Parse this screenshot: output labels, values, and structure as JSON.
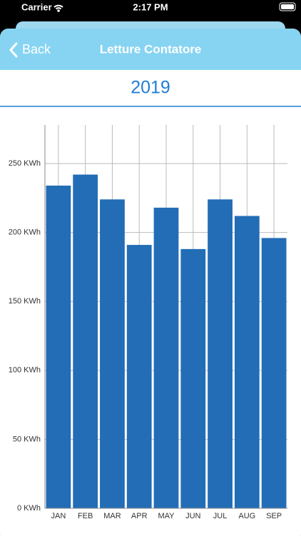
{
  "screen": {
    "carrier": "Carrier",
    "time": "2:17 PM",
    "back": "Back",
    "title": "Letture Contatore"
  },
  "chart_data": {
    "type": "bar",
    "title": "2019",
    "categories": [
      "JAN",
      "FEB",
      "MAR",
      "APR",
      "MAY",
      "JUN",
      "JUL",
      "AUG",
      "SEP"
    ],
    "values": [
      234,
      242,
      224,
      191,
      218,
      188,
      224,
      212,
      196
    ],
    "color": "#226db6",
    "ylim": [
      0,
      278
    ],
    "yticks": [
      {
        "value": 0,
        "label": "0 KWh"
      },
      {
        "value": 50,
        "label": "50 KWh"
      },
      {
        "value": 100,
        "label": "100 KWh"
      },
      {
        "value": 150,
        "label": "150 KWh"
      },
      {
        "value": 200,
        "label": "200 KWh"
      },
      {
        "value": 250,
        "label": "250 KWh"
      }
    ],
    "grid": true
  }
}
